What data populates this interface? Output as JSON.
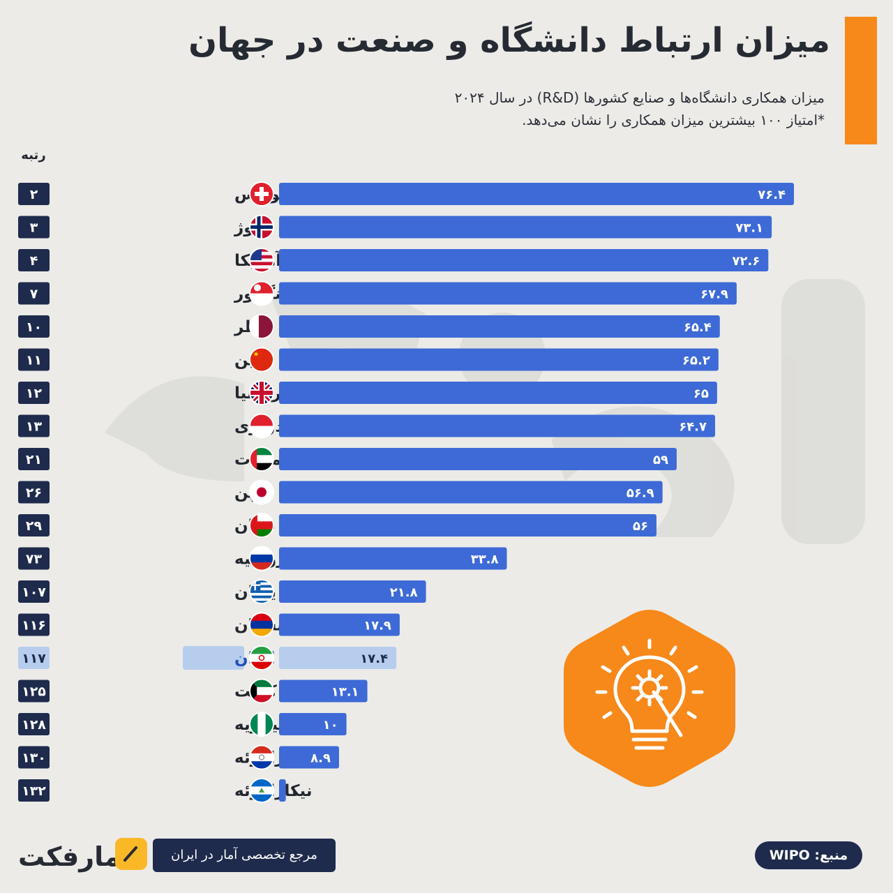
{
  "header": {
    "title": "میزان ارتباط دانشگاه و صنعت در جهان",
    "subtitle_line1": "میزان همکاری دانشگاه‌ها و صنایع کشورها (R&D) در سال ۲۰۲۴",
    "subtitle_line2": "*امتیاز ۱۰۰ بیشترین میزان همکاری را نشان می‌دهد."
  },
  "rank_header": "رتبه",
  "colors": {
    "bar": "#3d6ad6",
    "bar_highlight": "#b6cdee",
    "rank_badge": "#1f2b4c",
    "rank_badge_highlight": "#b6cdee",
    "accent": "#f7881a"
  },
  "chart_data": {
    "type": "bar",
    "orientation": "horizontal",
    "categories": [
      "سوئیس",
      "نروژ",
      "آمریکا",
      "سنگاپور",
      "قطر",
      "چین",
      "بریتانیا",
      "اندونزی",
      "امارات",
      "ژاپن",
      "عمان",
      "روسیه",
      "یونان",
      "ارمنستان",
      "ایران",
      "کویت",
      "نیجریه",
      "پاراگوئه",
      "نیکاراگوئه"
    ],
    "values": [
      76.4,
      73.1,
      72.6,
      67.9,
      65.4,
      65.2,
      65,
      64.7,
      59,
      56.9,
      56,
      33.8,
      21.8,
      17.9,
      17.4,
      13.1,
      10,
      8.9,
      1
    ],
    "value_labels": [
      "۷۶.۴",
      "۷۳.۱",
      "۷۲.۶",
      "۶۷.۹",
      "۶۵.۴",
      "۶۵.۲",
      "۶۵",
      "۶۴.۷",
      "۵۹",
      "۵۶.۹",
      "۵۶",
      "۳۳.۸",
      "۲۱.۸",
      "۱۷.۹",
      "۱۷.۴",
      "۱۳.۱",
      "۱۰",
      "۸.۹",
      "۱"
    ],
    "ranks": [
      "۲",
      "۳",
      "۴",
      "۷",
      "۱۰",
      "۱۱",
      "۱۲",
      "۱۳",
      "۲۱",
      "۲۶",
      "۲۹",
      "۷۳",
      "۱۰۷",
      "۱۱۶",
      "۱۱۷",
      "۱۲۵",
      "۱۲۸",
      "۱۳۰",
      "۱۳۲"
    ],
    "flags": [
      "switzerland",
      "norway",
      "usa",
      "singapore",
      "qatar",
      "china",
      "uk",
      "indonesia",
      "uae",
      "japan",
      "oman",
      "russia",
      "greece",
      "armenia",
      "iran",
      "kuwait",
      "nigeria",
      "paraguay",
      "nicaragua"
    ],
    "highlight": "ایران",
    "xlim": [
      0,
      100
    ]
  },
  "footer": {
    "logo_text": "آمارفکت",
    "tagline": "مرجع تخصصی آمار در ایران",
    "source": "منبع: WIPO"
  },
  "icons": {
    "hex_badge": "lightbulb-gear-icon",
    "logo_mark": "pen-icon"
  }
}
